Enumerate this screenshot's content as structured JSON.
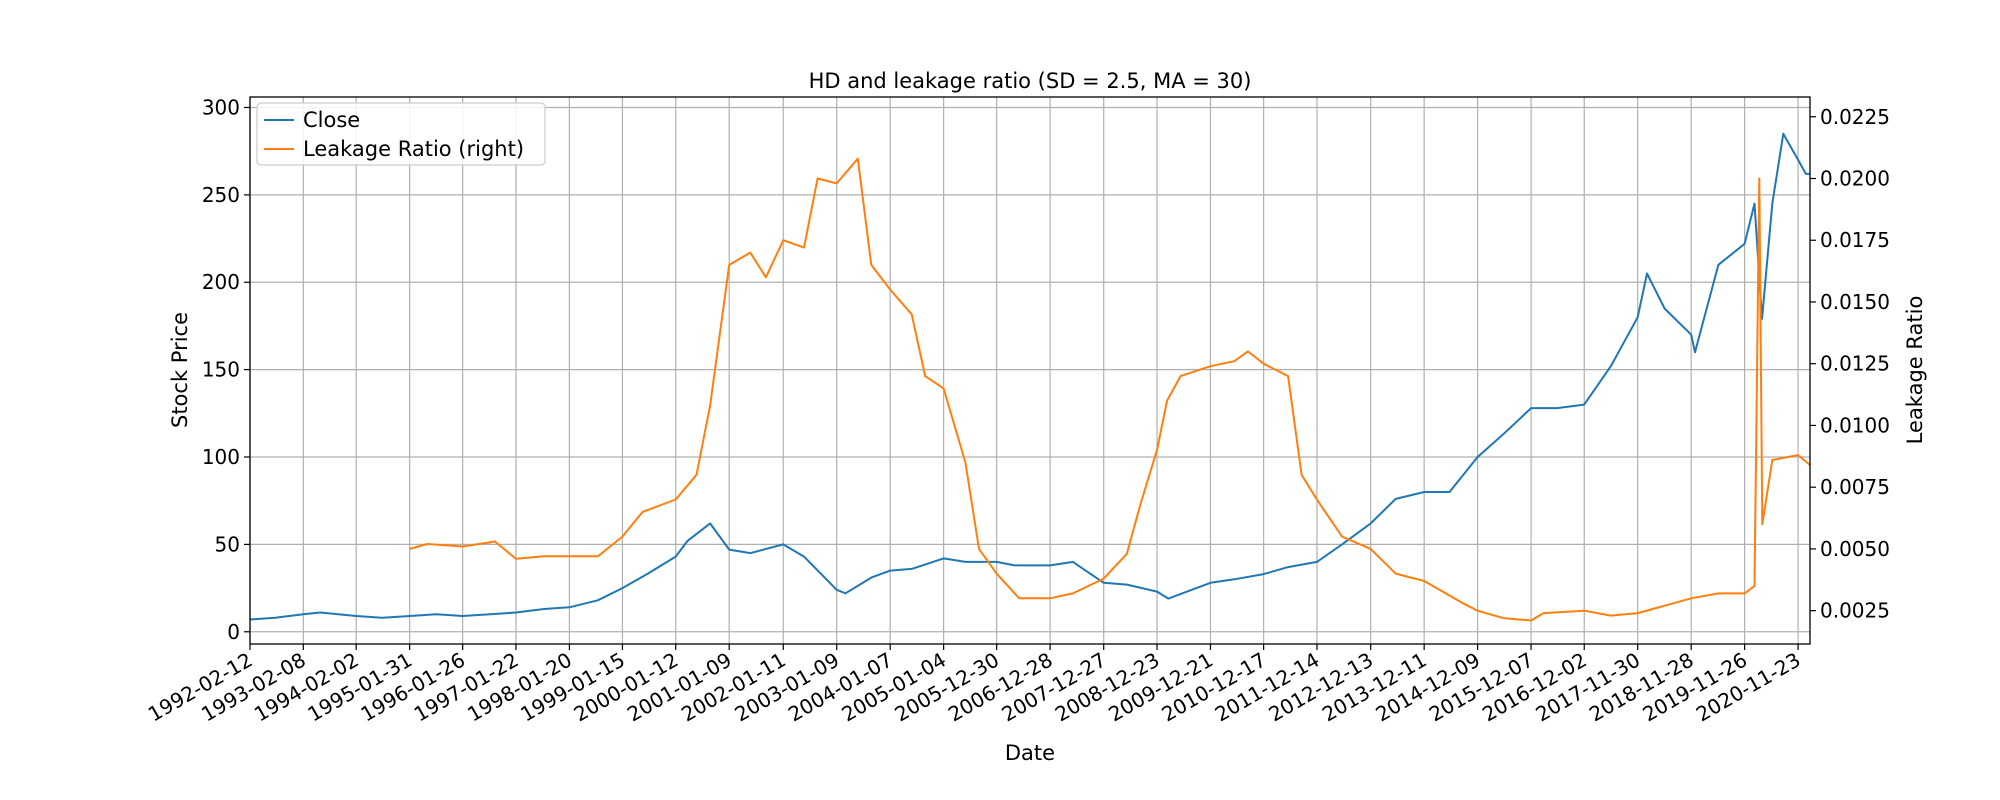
{
  "chart_data": {
    "type": "line",
    "title": "HD and leakage ratio (SD = 2.5, MA = 30)",
    "xlabel": "Date",
    "ylabel": "Stock Price",
    "ylabel_right": "Leakage Ratio",
    "x_ticks": [
      "1992-02-12",
      "1993-02-08",
      "1994-02-02",
      "1995-01-31",
      "1996-01-26",
      "1997-01-22",
      "1998-01-20",
      "1999-01-15",
      "2000-01-12",
      "2001-01-09",
      "2002-01-11",
      "2003-01-09",
      "2004-01-07",
      "2005-01-04",
      "2005-12-30",
      "2006-12-28",
      "2007-12-27",
      "2008-12-23",
      "2009-12-21",
      "2010-12-17",
      "2011-12-14",
      "2012-12-13",
      "2013-12-11",
      "2014-12-09",
      "2015-12-07",
      "2016-12-02",
      "2017-11-30",
      "2018-11-28",
      "2019-11-26",
      "2020-11-23"
    ],
    "x_range": [
      "1992-02-12",
      "2021-02-12"
    ],
    "y_left_ticks": [
      0,
      50,
      100,
      150,
      200,
      250,
      300
    ],
    "y_left_lim": [
      -7,
      306
    ],
    "y_right_ticks": [
      "0.0025",
      "0.0050",
      "0.0075",
      "0.0100",
      "0.0125",
      "0.0150",
      "0.0175",
      "0.0200",
      "0.0225"
    ],
    "y_right_lim": [
      0.00115,
      0.0233
    ],
    "grid": true,
    "legend_position": "upper-left",
    "series": [
      {
        "name": "Close",
        "axis": "left",
        "color": "#1f77b4",
        "points": [
          [
            "1992-02-12",
            7
          ],
          [
            "1992-08-01",
            8
          ],
          [
            "1993-02-08",
            10
          ],
          [
            "1993-06-01",
            11
          ],
          [
            "1994-02-02",
            9
          ],
          [
            "1994-08-01",
            8
          ],
          [
            "1995-01-31",
            9
          ],
          [
            "1995-08-01",
            10
          ],
          [
            "1996-01-26",
            9
          ],
          [
            "1996-08-01",
            10
          ],
          [
            "1997-01-22",
            11
          ],
          [
            "1997-08-01",
            13
          ],
          [
            "1998-01-20",
            14
          ],
          [
            "1998-08-01",
            18
          ],
          [
            "1999-01-15",
            25
          ],
          [
            "1999-07-01",
            33
          ],
          [
            "2000-01-12",
            43
          ],
          [
            "2000-04-01",
            52
          ],
          [
            "2000-09-01",
            62
          ],
          [
            "2001-01-09",
            47
          ],
          [
            "2001-06-01",
            45
          ],
          [
            "2002-01-11",
            50
          ],
          [
            "2002-06-01",
            43
          ],
          [
            "2003-01-09",
            24
          ],
          [
            "2003-03-10",
            22
          ],
          [
            "2003-09-01",
            31
          ],
          [
            "2004-01-07",
            35
          ],
          [
            "2004-06-01",
            36
          ],
          [
            "2005-01-04",
            42
          ],
          [
            "2005-06-01",
            40
          ],
          [
            "2005-12-30",
            40
          ],
          [
            "2006-05-01",
            38
          ],
          [
            "2006-12-28",
            38
          ],
          [
            "2007-06-01",
            40
          ],
          [
            "2007-12-27",
            28
          ],
          [
            "2008-06-01",
            27
          ],
          [
            "2008-12-23",
            23
          ],
          [
            "2009-03-10",
            19
          ],
          [
            "2009-12-21",
            28
          ],
          [
            "2010-06-01",
            30
          ],
          [
            "2010-12-17",
            33
          ],
          [
            "2011-06-01",
            37
          ],
          [
            "2011-12-14",
            40
          ],
          [
            "2012-06-01",
            50
          ],
          [
            "2012-12-13",
            62
          ],
          [
            "2013-06-01",
            76
          ],
          [
            "2013-12-11",
            80
          ],
          [
            "2014-06-01",
            80
          ],
          [
            "2014-12-09",
            100
          ],
          [
            "2015-06-01",
            113
          ],
          [
            "2015-12-07",
            128
          ],
          [
            "2016-06-01",
            128
          ],
          [
            "2016-12-02",
            130
          ],
          [
            "2017-06-01",
            152
          ],
          [
            "2017-11-30",
            180
          ],
          [
            "2018-02-01",
            205
          ],
          [
            "2018-06-01",
            185
          ],
          [
            "2018-11-28",
            170
          ],
          [
            "2018-12-24",
            160
          ],
          [
            "2019-06-01",
            210
          ],
          [
            "2019-11-26",
            222
          ],
          [
            "2020-02-01",
            245
          ],
          [
            "2020-03-23",
            179
          ],
          [
            "2020-06-01",
            245
          ],
          [
            "2020-08-15",
            285
          ],
          [
            "2020-11-23",
            270
          ],
          [
            "2021-01-15",
            262
          ],
          [
            "2021-02-12",
            262
          ]
        ]
      },
      {
        "name": "Leakage Ratio (right)",
        "axis": "right",
        "color": "#ff7f0e",
        "points": [
          [
            "1995-01-31",
            0.005
          ],
          [
            "1995-06-01",
            0.0052
          ],
          [
            "1996-01-26",
            0.0051
          ],
          [
            "1996-09-01",
            0.0053
          ],
          [
            "1997-01-22",
            0.0046
          ],
          [
            "1997-08-01",
            0.0047
          ],
          [
            "1998-01-20",
            0.0047
          ],
          [
            "1998-08-01",
            0.0047
          ],
          [
            "1999-01-15",
            0.0055
          ],
          [
            "1999-06-01",
            0.0065
          ],
          [
            "2000-01-12",
            0.007
          ],
          [
            "2000-06-01",
            0.008
          ],
          [
            "2000-09-01",
            0.0108
          ],
          [
            "2001-01-09",
            0.0165
          ],
          [
            "2001-06-01",
            0.017
          ],
          [
            "2001-09-15",
            0.016
          ],
          [
            "2002-01-11",
            0.0175
          ],
          [
            "2002-06-01",
            0.0172
          ],
          [
            "2002-09-01",
            0.02
          ],
          [
            "2003-01-09",
            0.0198
          ],
          [
            "2003-06-01",
            0.0208
          ],
          [
            "2003-09-01",
            0.0165
          ],
          [
            "2004-01-07",
            0.0155
          ],
          [
            "2004-06-01",
            0.0145
          ],
          [
            "2004-09-01",
            0.012
          ],
          [
            "2005-01-04",
            0.0115
          ],
          [
            "2005-06-01",
            0.0085
          ],
          [
            "2005-09-01",
            0.005
          ],
          [
            "2005-12-30",
            0.004
          ],
          [
            "2006-06-01",
            0.003
          ],
          [
            "2006-12-28",
            0.003
          ],
          [
            "2007-06-01",
            0.0032
          ],
          [
            "2007-12-27",
            0.0038
          ],
          [
            "2008-06-01",
            0.0048
          ],
          [
            "2008-09-01",
            0.0068
          ],
          [
            "2008-12-23",
            0.009
          ],
          [
            "2009-03-01",
            0.011
          ],
          [
            "2009-06-01",
            0.012
          ],
          [
            "2009-12-21",
            0.0124
          ],
          [
            "2010-06-01",
            0.0126
          ],
          [
            "2010-09-01",
            0.013
          ],
          [
            "2010-12-17",
            0.0125
          ],
          [
            "2011-06-01",
            0.012
          ],
          [
            "2011-09-01",
            0.008
          ],
          [
            "2011-12-14",
            0.007
          ],
          [
            "2012-06-01",
            0.0055
          ],
          [
            "2012-12-13",
            0.005
          ],
          [
            "2013-06-01",
            0.004
          ],
          [
            "2013-12-11",
            0.0037
          ],
          [
            "2014-09-01",
            0.0028
          ],
          [
            "2014-12-09",
            0.0025
          ],
          [
            "2015-06-01",
            0.0022
          ],
          [
            "2015-12-07",
            0.0021
          ],
          [
            "2016-03-01",
            0.0024
          ],
          [
            "2016-12-02",
            0.0025
          ],
          [
            "2017-06-01",
            0.0023
          ],
          [
            "2017-11-30",
            0.0024
          ],
          [
            "2018-06-01",
            0.0027
          ],
          [
            "2018-11-28",
            0.003
          ],
          [
            "2019-06-01",
            0.0032
          ],
          [
            "2019-11-26",
            0.0032
          ],
          [
            "2020-02-01",
            0.0035
          ],
          [
            "2020-03-05",
            0.02
          ],
          [
            "2020-03-25",
            0.006
          ],
          [
            "2020-06-01",
            0.0086
          ],
          [
            "2020-11-23",
            0.0088
          ],
          [
            "2021-02-12",
            0.0084
          ]
        ]
      }
    ]
  }
}
